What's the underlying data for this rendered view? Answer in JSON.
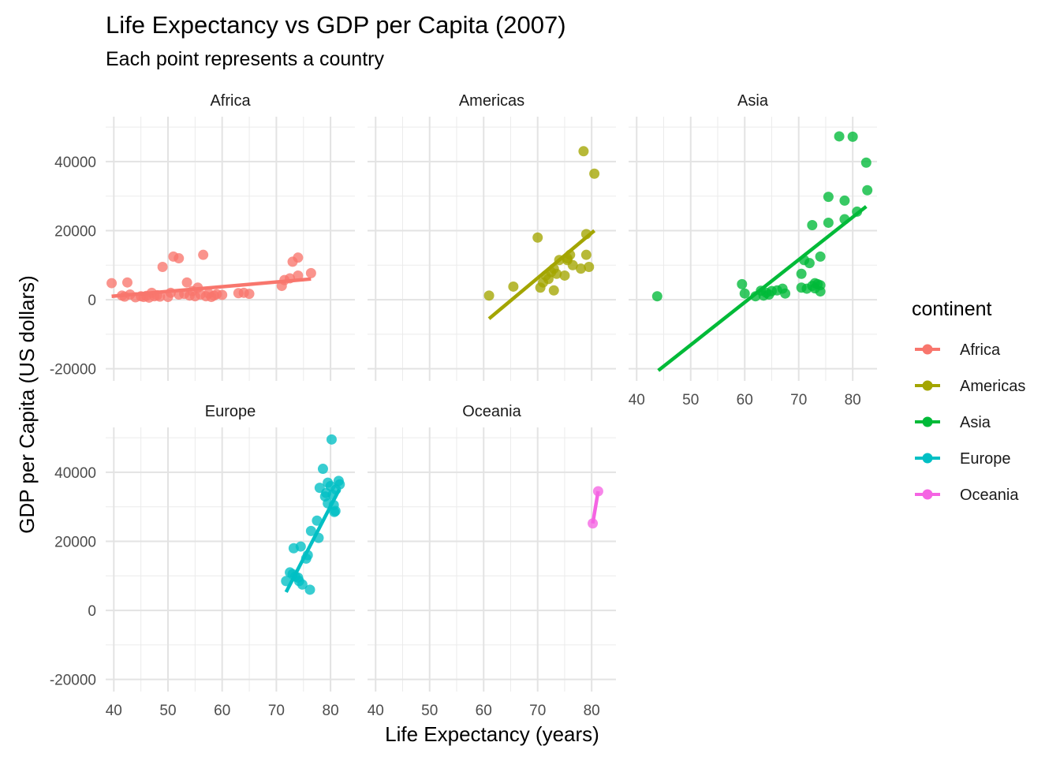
{
  "chart_data": {
    "type": "scatter",
    "title": "Life Expectancy vs GDP per Capita (2007)",
    "subtitle": "Each point represents a country",
    "xlabel": "Life Expectancy (years)",
    "ylabel": "GDP per Capita (US dollars)",
    "xlim": [
      38.5,
      84.5
    ],
    "ylim": [
      -23500,
      53000
    ],
    "x_ticks": [
      40,
      50,
      60,
      70,
      80
    ],
    "y_ticks": [
      -20000,
      0,
      20000,
      40000
    ],
    "y_tick_labels": [
      "-20000",
      "0",
      "20000",
      "40000"
    ],
    "grid": true,
    "legend_position": "right",
    "legend_title": "continent",
    "facets": [
      "Africa",
      "Americas",
      "Asia",
      "Europe",
      "Oceania"
    ],
    "series": [
      {
        "name": "Africa",
        "color": "#F8766D",
        "trend": [
          [
            39.6,
            1000
          ],
          [
            76.4,
            6000
          ]
        ],
        "points": [
          [
            39.6,
            4800
          ],
          [
            41.5,
            1200
          ],
          [
            42.0,
            900
          ],
          [
            42.5,
            5000
          ],
          [
            43.0,
            1500
          ],
          [
            44.0,
            700
          ],
          [
            45.0,
            1000
          ],
          [
            45.5,
            800
          ],
          [
            46.0,
            1100
          ],
          [
            46.5,
            600
          ],
          [
            47.0,
            2000
          ],
          [
            47.5,
            1000
          ],
          [
            48.0,
            1300
          ],
          [
            48.5,
            900
          ],
          [
            49.0,
            9500
          ],
          [
            50.0,
            800
          ],
          [
            50.5,
            2000
          ],
          [
            51.0,
            12500
          ],
          [
            52.0,
            12000
          ],
          [
            52.0,
            1500
          ],
          [
            53.0,
            1700
          ],
          [
            53.5,
            5000
          ],
          [
            54.0,
            1200
          ],
          [
            54.5,
            2500
          ],
          [
            55.0,
            1000
          ],
          [
            55.5,
            3500
          ],
          [
            56.0,
            1500
          ],
          [
            56.5,
            13000
          ],
          [
            57.0,
            1000
          ],
          [
            57.5,
            1800
          ],
          [
            58.0,
            800
          ],
          [
            58.5,
            1200
          ],
          [
            59.0,
            1600
          ],
          [
            60.0,
            1400
          ],
          [
            63.0,
            1900
          ],
          [
            64.0,
            2000
          ],
          [
            65.0,
            1700
          ],
          [
            71.0,
            4000
          ],
          [
            71.5,
            5700
          ],
          [
            72.5,
            6200
          ],
          [
            73.0,
            11000
          ],
          [
            74.0,
            12200
          ],
          [
            74.0,
            7000
          ],
          [
            76.4,
            7700
          ]
        ]
      },
      {
        "name": "Americas",
        "color": "#A3A500",
        "trend": [
          [
            61.0,
            -5500
          ],
          [
            80.5,
            20000
          ]
        ],
        "points": [
          [
            61.0,
            1200
          ],
          [
            65.5,
            3800
          ],
          [
            70.0,
            18000
          ],
          [
            70.5,
            3500
          ],
          [
            71.0,
            5000
          ],
          [
            71.5,
            7000
          ],
          [
            72.0,
            6000
          ],
          [
            72.5,
            8000
          ],
          [
            73.0,
            9000
          ],
          [
            73.0,
            2700
          ],
          [
            73.5,
            7500
          ],
          [
            74.0,
            11500
          ],
          [
            75.0,
            7000
          ],
          [
            75.5,
            12000
          ],
          [
            75.5,
            11500
          ],
          [
            76.0,
            13000
          ],
          [
            76.5,
            10000
          ],
          [
            78.0,
            9000
          ],
          [
            78.5,
            43000
          ],
          [
            79.0,
            19000
          ],
          [
            79.0,
            13000
          ],
          [
            79.5,
            9500
          ],
          [
            80.5,
            36500
          ]
        ]
      },
      {
        "name": "Asia",
        "color": "#00BA38",
        "trend": [
          [
            44.0,
            -20500
          ],
          [
            82.5,
            27000
          ]
        ],
        "points": [
          [
            43.8,
            1000
          ],
          [
            59.5,
            4500
          ],
          [
            60.0,
            1800
          ],
          [
            62.0,
            1000
          ],
          [
            63.0,
            2600
          ],
          [
            63.5,
            1200
          ],
          [
            64.0,
            2000
          ],
          [
            64.5,
            1500
          ],
          [
            65.0,
            2500
          ],
          [
            66.0,
            2700
          ],
          [
            67.0,
            3200
          ],
          [
            67.5,
            1800
          ],
          [
            70.5,
            3500
          ],
          [
            70.5,
            7500
          ],
          [
            71.0,
            11500
          ],
          [
            71.5,
            3200
          ],
          [
            72.0,
            10600
          ],
          [
            72.5,
            21600
          ],
          [
            72.5,
            4000
          ],
          [
            73.0,
            4800
          ],
          [
            73.0,
            3300
          ],
          [
            73.5,
            4500
          ],
          [
            74.0,
            12500
          ],
          [
            74.0,
            4200
          ],
          [
            74.0,
            2400
          ],
          [
            75.5,
            22300
          ],
          [
            75.5,
            29800
          ],
          [
            77.5,
            47300
          ],
          [
            78.5,
            28700
          ],
          [
            78.5,
            23300
          ],
          [
            80.0,
            47200
          ],
          [
            80.8,
            25500
          ],
          [
            82.5,
            39700
          ],
          [
            82.7,
            31700
          ]
        ]
      },
      {
        "name": "Europe",
        "color": "#00BFC4",
        "trend": [
          [
            71.8,
            5300
          ],
          [
            81.6,
            35000
          ]
        ],
        "points": [
          [
            71.8,
            8500
          ],
          [
            72.5,
            11000
          ],
          [
            73.0,
            10500
          ],
          [
            73.2,
            18000
          ],
          [
            73.5,
            9800
          ],
          [
            74.0,
            9500
          ],
          [
            74.2,
            8500
          ],
          [
            74.5,
            18500
          ],
          [
            74.8,
            7500
          ],
          [
            75.5,
            15000
          ],
          [
            75.8,
            16000
          ],
          [
            76.2,
            6000
          ],
          [
            76.4,
            23000
          ],
          [
            77.5,
            26000
          ],
          [
            77.8,
            21000
          ],
          [
            78.0,
            35500
          ],
          [
            78.6,
            41000
          ],
          [
            79.0,
            33000
          ],
          [
            79.2,
            34000
          ],
          [
            79.5,
            31000
          ],
          [
            79.5,
            37000
          ],
          [
            80.0,
            36000
          ],
          [
            80.2,
            49500
          ],
          [
            80.4,
            33500
          ],
          [
            80.6,
            30500
          ],
          [
            80.7,
            28500
          ],
          [
            80.9,
            28800
          ],
          [
            81.0,
            35000
          ],
          [
            81.5,
            37500
          ],
          [
            81.7,
            36500
          ]
        ]
      },
      {
        "name": "Oceania",
        "color": "#F564E3",
        "trend": [
          [
            80.2,
            25200
          ],
          [
            81.2,
            34500
          ]
        ],
        "points": [
          [
            80.2,
            25200
          ],
          [
            81.2,
            34500
          ]
        ]
      }
    ]
  }
}
